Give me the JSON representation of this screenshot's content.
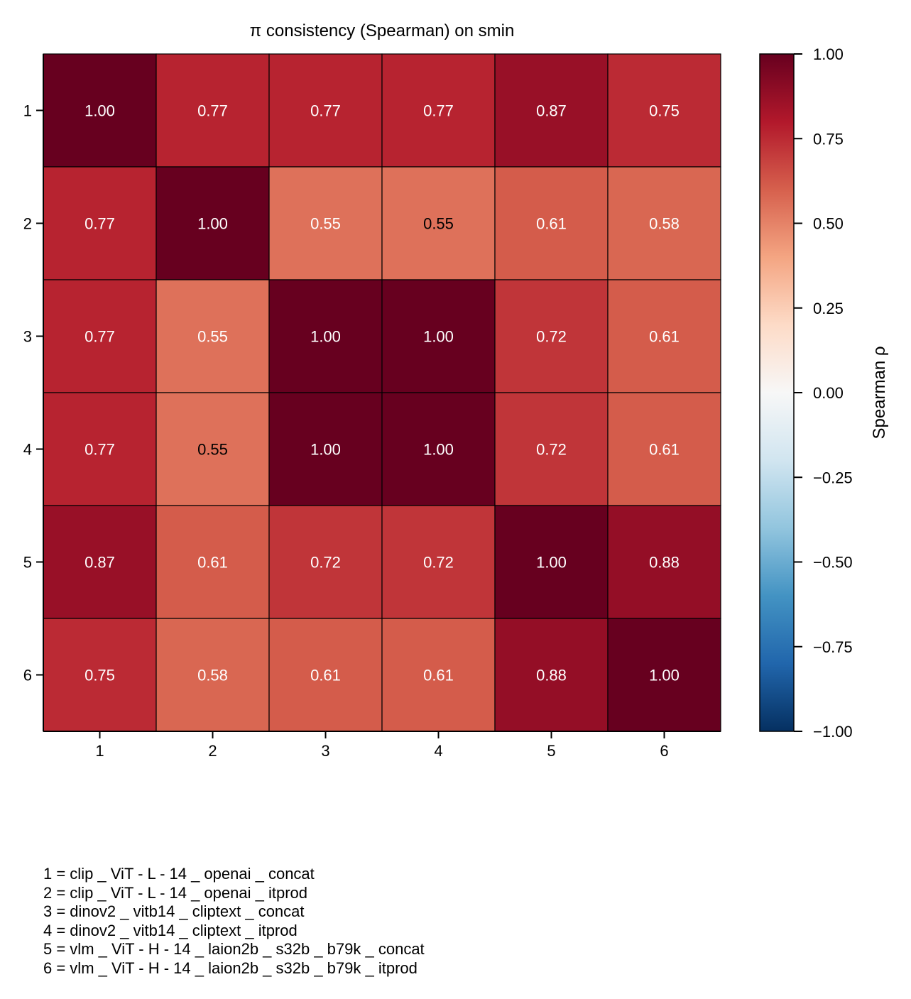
{
  "chart_data": {
    "type": "heatmap",
    "title": "π consistency (Spearman) on smin",
    "x_categories": [
      "1",
      "2",
      "3",
      "4",
      "5",
      "6"
    ],
    "y_categories": [
      "1",
      "2",
      "3",
      "4",
      "5",
      "6"
    ],
    "values": [
      [
        1.0,
        0.77,
        0.77,
        0.77,
        0.87,
        0.75
      ],
      [
        0.77,
        1.0,
        0.55,
        0.55,
        0.61,
        0.58
      ],
      [
        0.77,
        0.55,
        1.0,
        1.0,
        0.72,
        0.61
      ],
      [
        0.77,
        0.55,
        1.0,
        1.0,
        0.72,
        0.61
      ],
      [
        0.87,
        0.61,
        0.72,
        0.72,
        1.0,
        0.88
      ],
      [
        0.75,
        0.58,
        0.61,
        0.61,
        0.88,
        1.0
      ]
    ],
    "cell_labels": [
      [
        "1.00",
        "0.77",
        "0.77",
        "0.77",
        "0.87",
        "0.75"
      ],
      [
        "0.77",
        "1.00",
        "0.55",
        "0.55",
        "0.61",
        "0.58"
      ],
      [
        "0.77",
        "0.55",
        "1.00",
        "1.00",
        "0.72",
        "0.61"
      ],
      [
        "0.77",
        "0.55",
        "1.00",
        "1.00",
        "0.72",
        "0.61"
      ],
      [
        "0.87",
        "0.61",
        "0.72",
        "0.72",
        "1.00",
        "0.88"
      ],
      [
        "0.75",
        "0.58",
        "0.61",
        "0.61",
        "0.88",
        "1.00"
      ]
    ],
    "dark_text_cells": [
      [
        1,
        3
      ],
      [
        3,
        1
      ]
    ],
    "colormap": "RdBu_r",
    "vmin": -1.0,
    "vmax": 1.0,
    "colorbar": {
      "label": "Spearman ρ",
      "ticks": [
        1.0,
        0.75,
        0.5,
        0.25,
        0.0,
        -0.25,
        -0.5,
        -0.75,
        -1.0
      ],
      "tick_labels": [
        "1.00",
        "0.75",
        "0.50",
        "0.25",
        "0.00",
        "−0.25",
        "−0.50",
        "−0.75",
        "−1.00"
      ]
    },
    "legend_lines": [
      "1 = clip _ ViT - L - 14 _ openai _ concat",
      "2 = clip _ ViT - L - 14 _ openai _ itprod",
      "3 = dinov2 _ vitb14 _ cliptext _ concat",
      "4 = dinov2 _ vitb14 _ cliptext _ itprod",
      "5 = vlm _ ViT - H - 14 _ laion2b _ s32b _ b79k _ concat",
      "6 = vlm _ ViT - H - 14 _ laion2b _ s32b _ b79k _ itprod"
    ]
  }
}
